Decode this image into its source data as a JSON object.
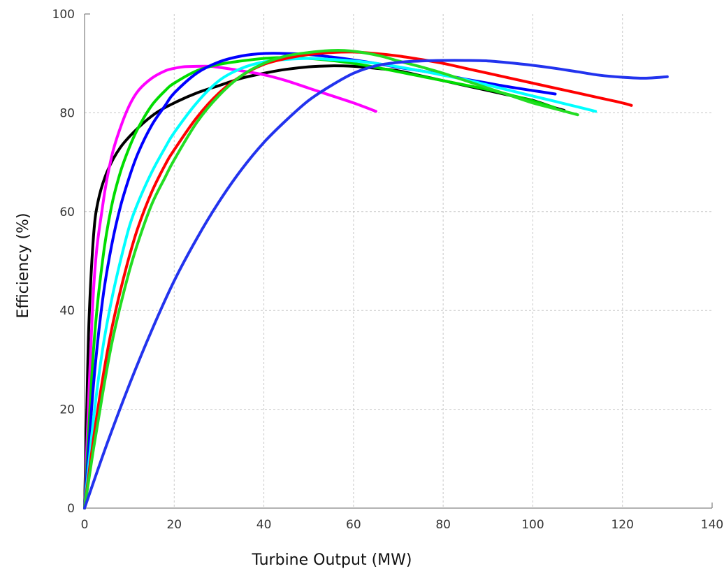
{
  "chart_data": {
    "type": "line",
    "xlabel": "Turbine Output (MW)",
    "ylabel": "Efficiency (%)",
    "xlim": [
      0,
      140
    ],
    "ylim": [
      0,
      100
    ],
    "xticks": [
      "0",
      "20",
      "40",
      "60",
      "80",
      "100",
      "120",
      "140"
    ],
    "yticks": [
      "0",
      "20",
      "40",
      "60",
      "80",
      "100"
    ],
    "grid": true,
    "legend": "none",
    "series": [
      {
        "color": "#000000",
        "x": [
          0,
          0.5,
          1,
          2,
          3,
          5,
          8,
          12,
          16,
          20,
          25,
          30,
          35,
          40,
          45,
          50,
          55,
          60,
          65,
          70,
          75,
          80,
          85,
          90,
          95,
          100,
          105,
          107
        ],
        "y": [
          0,
          20,
          38,
          55,
          62,
          68,
          73,
          77,
          80,
          82,
          84,
          85.5,
          87,
          88,
          88.8,
          89.3,
          89.5,
          89.4,
          89,
          88.5,
          87.5,
          86.5,
          85.5,
          84.5,
          83.5,
          82.5,
          81,
          80.5
        ]
      },
      {
        "color": "#ff00ff",
        "x": [
          0,
          2,
          4,
          6,
          8,
          10,
          12,
          15,
          18,
          20,
          22,
          25,
          28,
          30,
          35,
          40,
          45,
          50,
          55,
          60,
          65
        ],
        "y": [
          0,
          44,
          61,
          71,
          77,
          81.5,
          84.5,
          87,
          88.5,
          89,
          89.3,
          89.4,
          89.4,
          89.2,
          88.5,
          87.7,
          86.5,
          85,
          83.5,
          82,
          80.3
        ]
      },
      {
        "color": "#00dd00",
        "x": [
          0,
          2,
          4,
          6,
          8,
          10,
          12,
          15,
          18,
          20,
          25,
          30,
          35,
          40,
          45,
          50,
          55,
          60,
          65,
          70,
          75,
          80,
          85,
          90,
          95,
          100,
          105
        ],
        "y": [
          0,
          32,
          50,
          61,
          68,
          73,
          77,
          81.5,
          84.5,
          86,
          88.5,
          89.8,
          90.5,
          91,
          91.2,
          91,
          90.6,
          90,
          89.2,
          88.3,
          87.4,
          86.5,
          85.6,
          84.7,
          83.6,
          82.4,
          81
        ]
      },
      {
        "color": "#0000ff",
        "x": [
          0,
          2,
          4,
          6,
          8,
          10,
          12,
          15,
          18,
          20,
          25,
          30,
          35,
          40,
          45,
          50,
          55,
          60,
          65,
          70,
          75,
          80,
          85,
          90,
          95,
          100,
          105
        ],
        "y": [
          0,
          25,
          42,
          53,
          61,
          67,
          72,
          77.5,
          81.5,
          84,
          88,
          90.3,
          91.5,
          92,
          92,
          91.8,
          91.3,
          90.7,
          90,
          89.2,
          88.5,
          87.7,
          86.8,
          86,
          85.2,
          84.5,
          83.8
        ]
      },
      {
        "color": "#00ffff",
        "x": [
          0,
          2,
          4,
          6,
          8,
          10,
          12,
          15,
          18,
          20,
          25,
          30,
          35,
          40,
          45,
          50,
          55,
          60,
          65,
          70,
          75,
          80,
          85,
          90,
          95,
          100,
          105,
          110,
          114
        ],
        "y": [
          0,
          18,
          32,
          42,
          50,
          57,
          62,
          68,
          73,
          76,
          82,
          86.5,
          89,
          90.3,
          90.8,
          91,
          90.8,
          90.5,
          90,
          89.3,
          88.5,
          87.6,
          86.7,
          85.6,
          84.5,
          83.4,
          82.3,
          81.2,
          80.3
        ]
      },
      {
        "color": "#ff0000",
        "x": [
          0,
          2,
          4,
          6,
          8,
          10,
          12,
          15,
          18,
          20,
          25,
          30,
          35,
          40,
          45,
          50,
          55,
          60,
          65,
          70,
          75,
          80,
          85,
          90,
          95,
          100,
          105,
          110,
          115,
          120,
          122
        ],
        "y": [
          0,
          14,
          26,
          36,
          44,
          51,
          57,
          64,
          69.5,
          72.5,
          79,
          84,
          87.5,
          89.8,
          91,
          91.8,
          92.2,
          92.3,
          92,
          91.5,
          90.8,
          90,
          89,
          88,
          87,
          86,
          85,
          84,
          83,
          82,
          81.5
        ]
      },
      {
        "color": "#22dd22",
        "x": [
          0,
          2,
          4,
          6,
          8,
          10,
          12,
          15,
          18,
          20,
          25,
          30,
          35,
          40,
          45,
          50,
          55,
          58,
          62,
          66,
          70,
          75,
          80,
          85,
          90,
          95,
          100,
          105,
          110
        ],
        "y": [
          0,
          12,
          23,
          33,
          41,
          48,
          54,
          61.5,
          67,
          70.5,
          78,
          83.5,
          87.5,
          90,
          91.5,
          92.2,
          92.6,
          92.6,
          92.2,
          91.5,
          90.5,
          89.3,
          88,
          86.5,
          85,
          83.5,
          82,
          80.8,
          79.6
        ]
      },
      {
        "color": "#2233ee",
        "x": [
          0,
          5,
          10,
          15,
          20,
          25,
          30,
          35,
          40,
          45,
          50,
          55,
          60,
          65,
          70,
          75,
          80,
          85,
          90,
          95,
          100,
          105,
          110,
          115,
          120,
          125,
          130
        ],
        "y": [
          0,
          13,
          25,
          36,
          46,
          54.5,
          62,
          68.5,
          74,
          78.5,
          82.5,
          85.5,
          88,
          89.5,
          90.2,
          90.5,
          90.6,
          90.6,
          90.5,
          90.1,
          89.6,
          89,
          88.3,
          87.6,
          87.2,
          87,
          87.3
        ]
      }
    ]
  }
}
